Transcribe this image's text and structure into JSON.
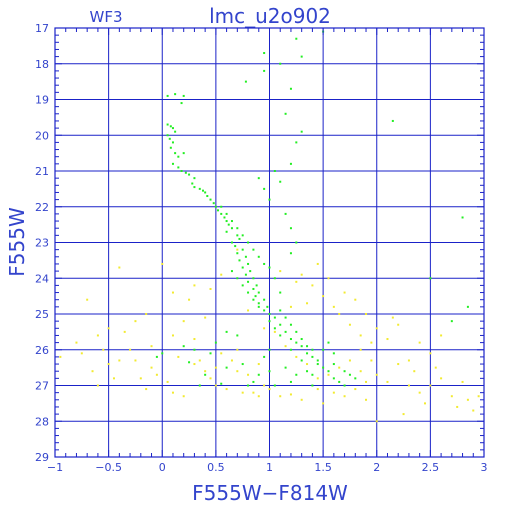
{
  "chart_data": {
    "type": "scatter",
    "title": "lmc_u2o902",
    "subtitle": "WF3",
    "xlabel": "F555W−F814W",
    "ylabel": "F555W",
    "xlim": [
      -1,
      3
    ],
    "ylim": [
      29,
      17
    ],
    "y_inverted": true,
    "grid": true,
    "xticks": [
      -1,
      -0.5,
      0,
      0.5,
      1,
      1.5,
      2,
      2.5,
      3
    ],
    "xtick_labels": [
      "−1",
      "−0.5",
      "0",
      "0.5",
      "1",
      "1.5",
      "2",
      "2.5",
      "3"
    ],
    "yticks": [
      17,
      18,
      19,
      20,
      21,
      22,
      23,
      24,
      25,
      26,
      27,
      28,
      29
    ],
    "ytick_labels": [
      "17",
      "18",
      "19",
      "20",
      "21",
      "22",
      "23",
      "24",
      "25",
      "26",
      "27",
      "28",
      "29"
    ],
    "colors": {
      "frame": "#1a22c8",
      "text": "#3344cc",
      "green": "#22ee22",
      "yellow": "#f2ea30"
    },
    "series": [
      {
        "color": "#22ee22",
        "points": [
          [
            0.05,
            18.9
          ],
          [
            0.12,
            18.85
          ],
          [
            0.2,
            18.9
          ],
          [
            0.18,
            19.1
          ],
          [
            0.05,
            19.7
          ],
          [
            0.08,
            19.75
          ],
          [
            0.1,
            19.8
          ],
          [
            0.12,
            19.9
          ],
          [
            0.05,
            20.0
          ],
          [
            0.07,
            20.1
          ],
          [
            0.1,
            20.2
          ],
          [
            0.08,
            20.35
          ],
          [
            0.12,
            20.5
          ],
          [
            0.15,
            20.6
          ],
          [
            0.2,
            20.5
          ],
          [
            0.1,
            20.8
          ],
          [
            0.15,
            20.9
          ],
          [
            0.18,
            21.0
          ],
          [
            0.22,
            21.05
          ],
          [
            0.25,
            21.1
          ],
          [
            0.3,
            21.2
          ],
          [
            0.28,
            21.35
          ],
          [
            0.3,
            21.45
          ],
          [
            0.35,
            21.5
          ],
          [
            0.38,
            21.55
          ],
          [
            0.4,
            21.6
          ],
          [
            0.42,
            21.7
          ],
          [
            0.45,
            21.8
          ],
          [
            0.48,
            21.9
          ],
          [
            0.5,
            22.0
          ],
          [
            0.52,
            22.1
          ],
          [
            0.55,
            22.2
          ],
          [
            0.58,
            22.3
          ],
          [
            0.6,
            22.4
          ],
          [
            0.62,
            22.5
          ],
          [
            0.65,
            22.6
          ],
          [
            0.6,
            22.7
          ],
          [
            0.7,
            22.8
          ],
          [
            0.72,
            22.9
          ],
          [
            0.65,
            23.0
          ],
          [
            0.68,
            23.1
          ],
          [
            0.75,
            23.2
          ],
          [
            0.7,
            23.3
          ],
          [
            0.78,
            23.4
          ],
          [
            0.72,
            23.5
          ],
          [
            0.8,
            23.6
          ],
          [
            0.75,
            23.7
          ],
          [
            0.82,
            23.8
          ],
          [
            0.78,
            23.9
          ],
          [
            0.85,
            24.0
          ],
          [
            0.8,
            24.1
          ],
          [
            0.88,
            24.2
          ],
          [
            0.85,
            24.3
          ],
          [
            0.9,
            24.4
          ],
          [
            0.87,
            24.5
          ],
          [
            0.95,
            24.6
          ],
          [
            0.9,
            24.7
          ],
          [
            0.98,
            24.8
          ],
          [
            0.95,
            24.9
          ],
          [
            1.0,
            25.0
          ],
          [
            1.05,
            25.1
          ],
          [
            1.0,
            25.2
          ],
          [
            1.1,
            25.3
          ],
          [
            1.05,
            25.4
          ],
          [
            1.15,
            25.5
          ],
          [
            1.1,
            25.6
          ],
          [
            1.2,
            25.7
          ],
          [
            1.25,
            25.8
          ],
          [
            1.3,
            25.9
          ],
          [
            1.2,
            26.0
          ],
          [
            1.35,
            26.1
          ],
          [
            1.4,
            26.2
          ],
          [
            1.3,
            26.3
          ],
          [
            1.45,
            26.4
          ],
          [
            1.5,
            26.5
          ],
          [
            1.55,
            26.6
          ],
          [
            1.4,
            26.7
          ],
          [
            1.6,
            26.8
          ],
          [
            1.65,
            26.9
          ],
          [
            1.7,
            27.0
          ],
          [
            0.55,
            22.0
          ],
          [
            0.6,
            22.2
          ],
          [
            0.65,
            22.4
          ],
          [
            0.7,
            22.6
          ],
          [
            0.75,
            22.8
          ],
          [
            0.8,
            23.0
          ],
          [
            0.85,
            23.2
          ],
          [
            0.9,
            23.4
          ],
          [
            0.95,
            23.6
          ],
          [
            0.65,
            23.8
          ],
          [
            0.7,
            24.0
          ],
          [
            0.75,
            24.2
          ],
          [
            0.8,
            24.4
          ],
          [
            0.85,
            24.6
          ],
          [
            0.9,
            24.8
          ],
          [
            1.1,
            24.9
          ],
          [
            1.15,
            25.1
          ],
          [
            1.2,
            25.3
          ],
          [
            1.25,
            25.5
          ],
          [
            1.3,
            25.7
          ],
          [
            1.35,
            25.9
          ],
          [
            1.4,
            26.0
          ],
          [
            1.45,
            26.3
          ],
          [
            1.6,
            26.4
          ],
          [
            1.7,
            26.6
          ],
          [
            1.75,
            26.7
          ],
          [
            1.8,
            26.8
          ],
          [
            1.15,
            26.5
          ],
          [
            1.0,
            26.6
          ],
          [
            0.9,
            26.7
          ],
          [
            0.85,
            26.9
          ],
          [
            0.8,
            27.0
          ],
          [
            1.05,
            27.0
          ],
          [
            1.2,
            26.9
          ],
          [
            0.95,
            26.2
          ],
          [
            1.0,
            26.0
          ],
          [
            0.7,
            25.6
          ],
          [
            0.5,
            25.8
          ],
          [
            0.3,
            26.0
          ],
          [
            0.2,
            25.9
          ],
          [
            0.45,
            26.1
          ],
          [
            0.6,
            25.5
          ],
          [
            1.1,
            24.4
          ],
          [
            1.05,
            24.0
          ],
          [
            1.0,
            23.7
          ],
          [
            1.2,
            23.3
          ],
          [
            1.25,
            23.0
          ],
          [
            1.2,
            22.6
          ],
          [
            1.15,
            22.2
          ],
          [
            1.0,
            21.8
          ],
          [
            0.95,
            21.5
          ],
          [
            1.1,
            21.3
          ],
          [
            1.05,
            21.0
          ],
          [
            0.9,
            21.2
          ],
          [
            1.2,
            20.8
          ],
          [
            1.25,
            20.2
          ],
          [
            1.3,
            19.9
          ],
          [
            1.15,
            19.4
          ],
          [
            1.2,
            18.7
          ],
          [
            1.1,
            18.0
          ],
          [
            1.3,
            17.8
          ],
          [
            0.95,
            17.7
          ],
          [
            1.25,
            17.3
          ],
          [
            1.5,
            17.1
          ],
          [
            0.78,
            18.5
          ],
          [
            0.95,
            18.2
          ],
          [
            2.15,
            19.6
          ],
          [
            2.8,
            22.3
          ],
          [
            2.5,
            24.0
          ],
          [
            2.85,
            24.8
          ],
          [
            2.7,
            25.2
          ],
          [
            0.0,
            26.1
          ],
          [
            -0.05,
            26.2
          ],
          [
            0.25,
            26.35
          ],
          [
            0.4,
            26.7
          ],
          [
            0.35,
            27.0
          ],
          [
            0.55,
            26.95
          ],
          [
            0.6,
            26.5
          ],
          [
            0.75,
            26.4
          ],
          [
            1.5,
            26.0
          ],
          [
            1.55,
            25.8
          ],
          [
            1.35,
            26.6
          ],
          [
            1.25,
            26.7
          ],
          [
            1.4,
            27.0
          ],
          [
            1.6,
            26.1
          ]
        ]
      },
      {
        "color": "#f2ea30",
        "points": [
          [
            -0.8,
            25.8
          ],
          [
            -0.75,
            26.1
          ],
          [
            -0.6,
            25.6
          ],
          [
            -0.5,
            25.4
          ],
          [
            -0.55,
            26.0
          ],
          [
            -0.4,
            26.3
          ],
          [
            -0.3,
            26.0
          ],
          [
            -0.25,
            25.2
          ],
          [
            -0.35,
            25.5
          ],
          [
            -0.5,
            26.4
          ],
          [
            -0.65,
            26.6
          ],
          [
            -0.2,
            26.8
          ],
          [
            -0.1,
            26.5
          ],
          [
            -0.05,
            26.7
          ],
          [
            0.05,
            26.9
          ],
          [
            0.1,
            27.2
          ],
          [
            -0.15,
            27.1
          ],
          [
            0.2,
            27.3
          ],
          [
            -0.4,
            23.7
          ],
          [
            -0.15,
            25.0
          ],
          [
            -0.7,
            24.6
          ],
          [
            -0.95,
            26.2
          ],
          [
            0.0,
            23.6
          ],
          [
            0.1,
            24.4
          ],
          [
            0.3,
            24.2
          ],
          [
            0.25,
            24.6
          ],
          [
            0.4,
            25.1
          ],
          [
            0.2,
            25.2
          ],
          [
            0.1,
            25.6
          ],
          [
            0.3,
            25.7
          ],
          [
            0.35,
            26.3
          ],
          [
            0.4,
            26.6
          ],
          [
            0.45,
            26.8
          ],
          [
            0.5,
            27.0
          ],
          [
            0.55,
            26.1
          ],
          [
            0.65,
            26.3
          ],
          [
            0.7,
            26.0
          ],
          [
            0.5,
            26.5
          ],
          [
            0.6,
            27.1
          ],
          [
            0.75,
            27.2
          ],
          [
            0.85,
            27.2
          ],
          [
            0.9,
            27.3
          ],
          [
            1.0,
            27.1
          ],
          [
            1.1,
            27.3
          ],
          [
            1.2,
            27.25
          ],
          [
            1.3,
            27.4
          ],
          [
            1.45,
            27.1
          ],
          [
            1.5,
            27.5
          ],
          [
            1.6,
            27.2
          ],
          [
            1.7,
            27.3
          ],
          [
            1.8,
            27.1
          ],
          [
            1.9,
            26.9
          ],
          [
            2.0,
            26.7
          ],
          [
            2.1,
            26.9
          ],
          [
            2.2,
            26.4
          ],
          [
            2.3,
            27.0
          ],
          [
            2.35,
            26.6
          ],
          [
            2.4,
            27.2
          ],
          [
            2.5,
            27.0
          ],
          [
            2.55,
            26.5
          ],
          [
            2.6,
            26.8
          ],
          [
            2.7,
            27.3
          ],
          [
            2.75,
            27.6
          ],
          [
            2.8,
            26.9
          ],
          [
            2.85,
            27.4
          ],
          [
            2.9,
            27.7
          ],
          [
            2.95,
            27.3
          ],
          [
            2.45,
            27.5
          ],
          [
            2.25,
            27.8
          ],
          [
            2.0,
            28.0
          ],
          [
            1.9,
            27.4
          ],
          [
            1.85,
            26.0
          ],
          [
            1.95,
            25.8
          ],
          [
            2.0,
            25.4
          ],
          [
            2.1,
            25.7
          ],
          [
            2.2,
            25.3
          ],
          [
            2.3,
            26.3
          ],
          [
            2.4,
            25.8
          ],
          [
            2.5,
            26.1
          ],
          [
            2.6,
            25.6
          ],
          [
            2.15,
            25.1
          ],
          [
            1.9,
            25.0
          ],
          [
            1.8,
            24.6
          ],
          [
            1.7,
            24.4
          ],
          [
            1.6,
            24.8
          ],
          [
            1.5,
            24.5
          ],
          [
            1.4,
            24.2
          ],
          [
            1.3,
            23.9
          ],
          [
            1.45,
            23.6
          ],
          [
            1.55,
            24.0
          ],
          [
            1.65,
            25.0
          ],
          [
            1.75,
            25.3
          ],
          [
            1.85,
            25.6
          ],
          [
            1.35,
            24.7
          ],
          [
            1.2,
            24.8
          ],
          [
            1.25,
            24.1
          ],
          [
            1.1,
            23.8
          ],
          [
            0.7,
            23.2
          ],
          [
            0.55,
            23.9
          ],
          [
            0.45,
            24.3
          ],
          [
            0.8,
            24.9
          ],
          [
            0.95,
            25.4
          ],
          [
            1.05,
            25.5
          ],
          [
            1.15,
            25.9
          ],
          [
            1.25,
            26.2
          ],
          [
            1.35,
            26.4
          ],
          [
            1.45,
            26.8
          ],
          [
            1.55,
            26.7
          ],
          [
            1.65,
            26.5
          ],
          [
            1.75,
            26.3
          ],
          [
            1.85,
            26.6
          ],
          [
            1.95,
            26.3
          ],
          [
            0.9,
            26.4
          ],
          [
            0.8,
            26.7
          ],
          [
            0.7,
            26.6
          ],
          [
            0.3,
            26.4
          ],
          [
            0.15,
            26.2
          ],
          [
            -0.1,
            25.9
          ],
          [
            -0.25,
            26.3
          ],
          [
            -0.45,
            26.8
          ],
          [
            -0.6,
            27.0
          ],
          [
            0.95,
            27.0
          ]
        ]
      }
    ]
  }
}
